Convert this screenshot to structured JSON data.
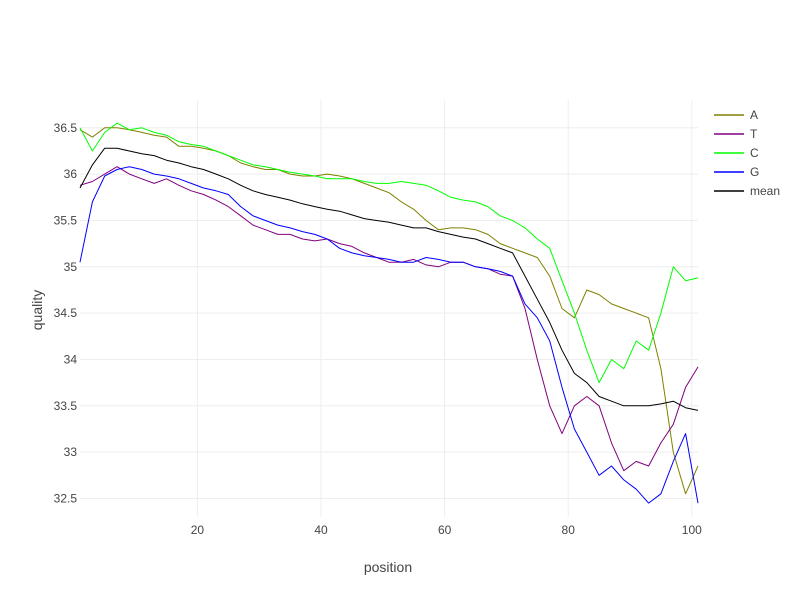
{
  "chart_data": {
    "type": "line",
    "title": "",
    "xlabel": "position",
    "ylabel": "quality",
    "xlim": [
      1,
      101
    ],
    "ylim": [
      32.3,
      36.8
    ],
    "xticks": [
      20,
      40,
      60,
      80,
      100
    ],
    "yticks": [
      32.5,
      33,
      33.5,
      34,
      34.5,
      35,
      35.5,
      36,
      36.5
    ],
    "ytick_labels": [
      "32.5",
      "33",
      "33.5",
      "34",
      "34.5",
      "35",
      "35.5",
      "36",
      "36.5"
    ],
    "grid": true,
    "legend_position": "top-right",
    "series": [
      {
        "name": "A",
        "color": "#808000",
        "x": [
          1,
          3,
          5,
          7,
          9,
          11,
          13,
          15,
          17,
          19,
          21,
          23,
          25,
          27,
          29,
          31,
          33,
          35,
          37,
          39,
          41,
          43,
          45,
          47,
          49,
          51,
          53,
          55,
          57,
          59,
          61,
          63,
          65,
          67,
          69,
          71,
          73,
          75,
          77,
          79,
          81,
          83,
          85,
          87,
          89,
          91,
          93,
          95,
          97,
          99,
          101
        ],
        "y": [
          36.48,
          36.4,
          36.5,
          36.5,
          36.48,
          36.45,
          36.42,
          36.4,
          36.3,
          36.3,
          36.28,
          36.25,
          36.2,
          36.12,
          36.08,
          36.05,
          36.05,
          36.0,
          35.98,
          35.98,
          36.0,
          35.98,
          35.95,
          35.9,
          35.85,
          35.8,
          35.7,
          35.62,
          35.5,
          35.4,
          35.42,
          35.42,
          35.4,
          35.35,
          35.25,
          35.2,
          35.15,
          35.1,
          34.9,
          34.55,
          34.45,
          34.75,
          34.7,
          34.6,
          34.55,
          34.5,
          34.45,
          33.9,
          33.0,
          32.55,
          32.85
        ]
      },
      {
        "name": "T",
        "color": "#800080",
        "x": [
          1,
          3,
          5,
          7,
          9,
          11,
          13,
          15,
          17,
          19,
          21,
          23,
          25,
          27,
          29,
          31,
          33,
          35,
          37,
          39,
          41,
          43,
          45,
          47,
          49,
          51,
          53,
          55,
          57,
          59,
          61,
          63,
          65,
          67,
          69,
          71,
          73,
          75,
          77,
          79,
          81,
          83,
          85,
          87,
          89,
          91,
          93,
          95,
          97,
          99,
          101
        ],
        "y": [
          35.88,
          35.92,
          36.0,
          36.08,
          36.0,
          35.95,
          35.9,
          35.95,
          35.88,
          35.82,
          35.78,
          35.72,
          35.65,
          35.55,
          35.45,
          35.4,
          35.35,
          35.35,
          35.3,
          35.28,
          35.3,
          35.25,
          35.22,
          35.15,
          35.1,
          35.05,
          35.05,
          35.08,
          35.02,
          35.0,
          35.05,
          35.05,
          35.0,
          34.98,
          34.92,
          34.9,
          34.55,
          34.0,
          33.5,
          33.2,
          33.5,
          33.6,
          33.5,
          33.1,
          32.8,
          32.9,
          32.85,
          33.1,
          33.3,
          33.7,
          33.92
        ]
      },
      {
        "name": "C",
        "color": "#00ff00",
        "x": [
          1,
          3,
          5,
          7,
          9,
          11,
          13,
          15,
          17,
          19,
          21,
          23,
          25,
          27,
          29,
          31,
          33,
          35,
          37,
          39,
          41,
          43,
          45,
          47,
          49,
          51,
          53,
          55,
          57,
          59,
          61,
          63,
          65,
          67,
          69,
          71,
          73,
          75,
          77,
          79,
          81,
          83,
          85,
          87,
          89,
          91,
          93,
          95,
          97,
          99,
          101
        ],
        "y": [
          36.5,
          36.25,
          36.45,
          36.55,
          36.48,
          36.5,
          36.45,
          36.42,
          36.35,
          36.32,
          36.3,
          36.25,
          36.2,
          36.15,
          36.1,
          36.08,
          36.05,
          36.02,
          36.0,
          35.98,
          35.95,
          35.95,
          35.95,
          35.92,
          35.9,
          35.9,
          35.92,
          35.9,
          35.88,
          35.82,
          35.75,
          35.72,
          35.7,
          35.65,
          35.55,
          35.5,
          35.42,
          35.3,
          35.2,
          34.85,
          34.5,
          34.1,
          33.75,
          34.0,
          33.9,
          34.2,
          34.1,
          34.5,
          35.0,
          34.85,
          34.88
        ]
      },
      {
        "name": "G",
        "color": "#0000ff",
        "x": [
          1,
          3,
          5,
          7,
          9,
          11,
          13,
          15,
          17,
          19,
          21,
          23,
          25,
          27,
          29,
          31,
          33,
          35,
          37,
          39,
          41,
          43,
          45,
          47,
          49,
          51,
          53,
          55,
          57,
          59,
          61,
          63,
          65,
          67,
          69,
          71,
          73,
          75,
          77,
          79,
          81,
          83,
          85,
          87,
          89,
          91,
          93,
          95,
          97,
          99,
          101
        ],
        "y": [
          35.05,
          35.7,
          35.98,
          36.05,
          36.08,
          36.05,
          36.0,
          35.98,
          35.95,
          35.9,
          35.85,
          35.82,
          35.78,
          35.65,
          35.55,
          35.5,
          35.45,
          35.42,
          35.38,
          35.35,
          35.3,
          35.2,
          35.15,
          35.12,
          35.1,
          35.08,
          35.05,
          35.05,
          35.1,
          35.08,
          35.05,
          35.05,
          35.0,
          34.98,
          34.95,
          34.9,
          34.6,
          34.45,
          34.2,
          33.7,
          33.25,
          33.0,
          32.75,
          32.85,
          32.7,
          32.6,
          32.45,
          32.55,
          32.9,
          33.2,
          32.45
        ]
      },
      {
        "name": "mean",
        "color": "#000000",
        "x": [
          1,
          3,
          5,
          7,
          9,
          11,
          13,
          15,
          17,
          19,
          21,
          23,
          25,
          27,
          29,
          31,
          33,
          35,
          37,
          39,
          41,
          43,
          45,
          47,
          49,
          51,
          53,
          55,
          57,
          59,
          61,
          63,
          65,
          67,
          69,
          71,
          73,
          75,
          77,
          79,
          81,
          83,
          85,
          87,
          89,
          91,
          93,
          95,
          97,
          99,
          101
        ],
        "y": [
          35.85,
          36.1,
          36.28,
          36.28,
          36.25,
          36.22,
          36.2,
          36.15,
          36.12,
          36.08,
          36.05,
          36.0,
          35.95,
          35.88,
          35.82,
          35.78,
          35.75,
          35.72,
          35.68,
          35.65,
          35.62,
          35.6,
          35.56,
          35.52,
          35.5,
          35.48,
          35.45,
          35.42,
          35.42,
          35.38,
          35.35,
          35.32,
          35.3,
          35.25,
          35.2,
          35.15,
          34.9,
          34.65,
          34.4,
          34.1,
          33.85,
          33.75,
          33.6,
          33.55,
          33.5,
          33.5,
          33.5,
          33.52,
          33.55,
          33.48,
          33.45
        ]
      }
    ]
  }
}
